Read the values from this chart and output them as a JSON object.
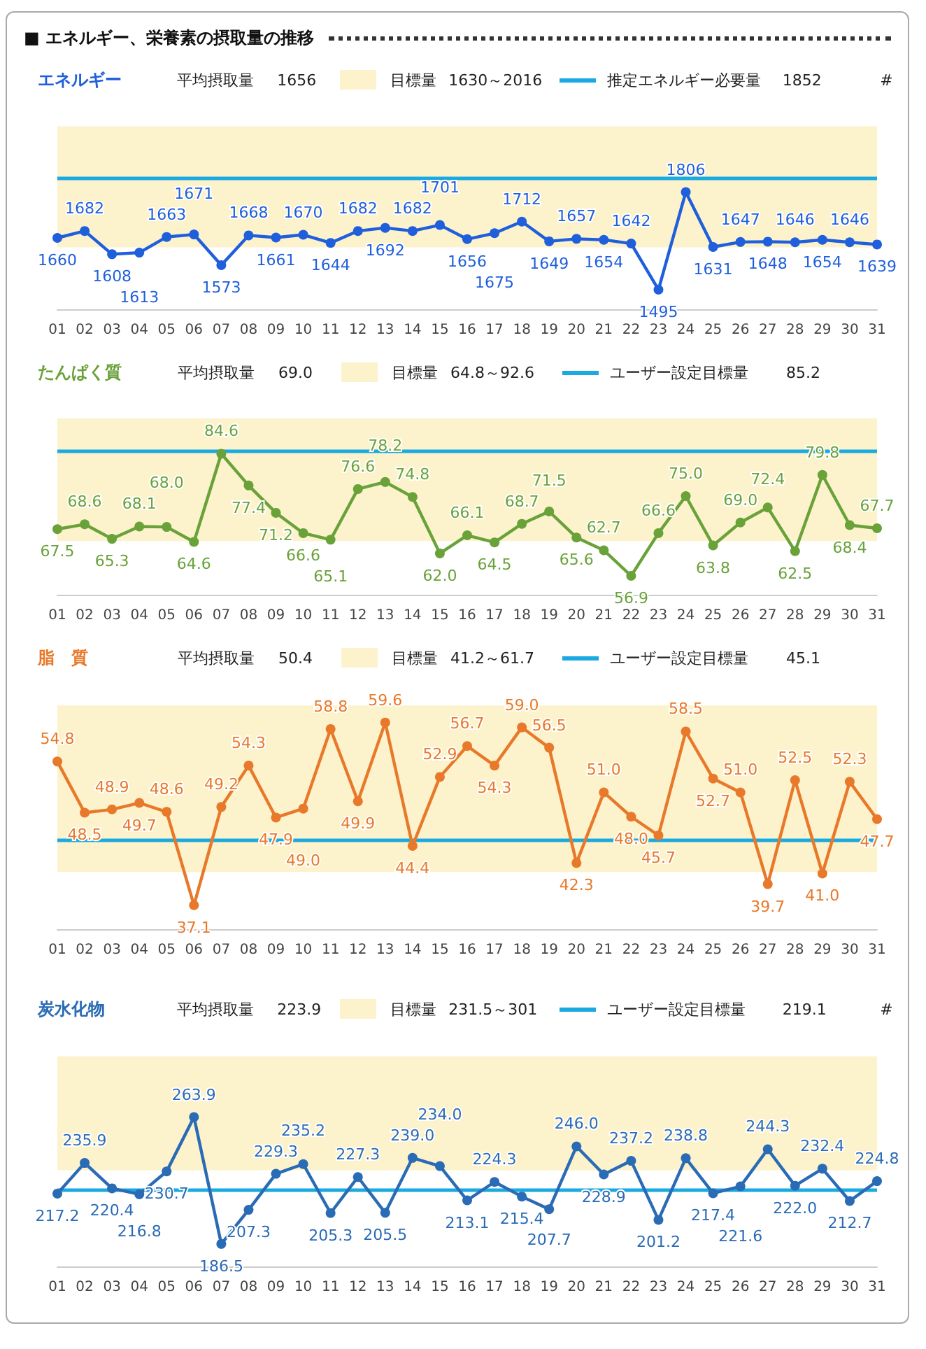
{
  "chart_data": [
    {
      "type": "other",
      "title": "■ エネルギー、栄養素の摂取量の推移"
    },
    {
      "type": "line",
      "title": "エネルギー",
      "legend": "top",
      "marker": "circle",
      "annotations": [
        "平均摂取量",
        "1656",
        "1630～2016",
        "1852",
        "#"
      ],
      "categories": [
        "01",
        "02",
        "03",
        "04",
        "05",
        "06",
        "07",
        "08",
        "09",
        "10",
        "11",
        "12",
        "13",
        "14",
        "15",
        "16",
        "17",
        "18",
        "19",
        "20",
        "21",
        "22",
        "23",
        "24",
        "25",
        "26",
        "27",
        "28",
        "29",
        "30",
        "31"
      ],
      "series": [
        {
          "color": "#1f5fdc",
          "values": [
            1660,
            1682,
            1608,
            1613,
            1663,
            1671,
            1573,
            1668,
            1661,
            1670,
            1644,
            1682,
            1692,
            1682,
            1701,
            1656,
            1675,
            1712,
            1649,
            1657,
            1654,
            1642,
            1495,
            1806,
            1631,
            1647,
            1648,
            1646,
            1654,
            1646,
            1639
          ],
          "value_labels": [
            "1660",
            "1682",
            "1608",
            "1613",
            "1663",
            "1671",
            "1573",
            "1668",
            "1661",
            "1670",
            "1644",
            "1682",
            "1692",
            "1682",
            "1701",
            "1656",
            "1675",
            "1712",
            "1649",
            "1657",
            "1654",
            "1642",
            "1495",
            "1806",
            "1631",
            "1647",
            "1648",
            "1646",
            "1654",
            "1646",
            "1639"
          ]
        }
      ],
      "bands": [
        {
          "axis": "y",
          "from": 1630,
          "to": 2016,
          "label": "目標量",
          "color": "#fcf2cc"
        }
      ],
      "ref_lines": [
        {
          "axis": "y",
          "value": 1852,
          "label": "推定エネルギー必要量",
          "color": "#1aa9e0"
        }
      ]
    },
    {
      "type": "line",
      "title": "たんぱく質",
      "legend": "top",
      "marker": "circle",
      "annotations": [
        "平均摂取量",
        "69.0",
        "64.8～92.6",
        "85.2"
      ],
      "categories": [
        "01",
        "02",
        "03",
        "04",
        "05",
        "06",
        "07",
        "08",
        "09",
        "10",
        "11",
        "12",
        "13",
        "14",
        "15",
        "16",
        "17",
        "18",
        "19",
        "20",
        "21",
        "22",
        "23",
        "24",
        "25",
        "26",
        "27",
        "28",
        "29",
        "30",
        "31"
      ],
      "series": [
        {
          "color": "#6aa23a",
          "values": [
            67.5,
            68.6,
            65.3,
            68.1,
            68.0,
            64.6,
            84.6,
            77.4,
            71.2,
            66.6,
            65.1,
            76.6,
            78.2,
            74.8,
            62.0,
            66.1,
            64.5,
            68.7,
            71.5,
            65.6,
            62.7,
            56.9,
            66.6,
            75.0,
            63.8,
            69.0,
            72.4,
            62.5,
            79.8,
            68.4,
            67.7
          ],
          "value_labels": [
            "67.5",
            "68.6",
            "65.3",
            "68.1",
            "68.0",
            "64.6",
            "84.6",
            "77.4",
            "71.2",
            "66.6",
            "65.1",
            "76.6",
            "78.2",
            "74.8",
            "62.0",
            "66.1",
            "64.5",
            "68.7",
            "71.5",
            "65.6",
            "62.7",
            "56.9",
            "66.6",
            "75.0",
            "63.8",
            "69.0",
            "72.4",
            "62.5",
            "79.8",
            "68.4",
            "67.7"
          ]
        }
      ],
      "bands": [
        {
          "axis": "y",
          "from": 64.8,
          "to": 92.6,
          "label": "目標量",
          "color": "#fcf2cc"
        }
      ],
      "ref_lines": [
        {
          "axis": "y",
          "value": 85.2,
          "label": "ユーザー設定目標量",
          "color": "#1aa9e0"
        }
      ]
    },
    {
      "type": "line",
      "title": "脂　質",
      "legend": "top",
      "marker": "circle",
      "annotations": [
        "平均摂取量",
        "50.4",
        "41.2～61.7",
        "45.1"
      ],
      "categories": [
        "01",
        "02",
        "03",
        "04",
        "05",
        "06",
        "07",
        "08",
        "09",
        "10",
        "11",
        "12",
        "13",
        "14",
        "15",
        "16",
        "17",
        "18",
        "19",
        "20",
        "21",
        "22",
        "23",
        "24",
        "25",
        "26",
        "27",
        "28",
        "29",
        "30",
        "31"
      ],
      "series": [
        {
          "color": "#e8792a",
          "values": [
            54.8,
            48.5,
            48.9,
            49.7,
            48.6,
            37.1,
            49.2,
            54.3,
            47.9,
            49.0,
            58.8,
            49.9,
            59.6,
            44.4,
            52.9,
            56.7,
            54.3,
            59.0,
            56.5,
            42.3,
            51.0,
            48.0,
            45.7,
            58.5,
            52.7,
            51.0,
            39.7,
            52.5,
            41.0,
            52.3,
            47.7
          ],
          "value_labels": [
            "54.8",
            "48.5",
            "48.9",
            "49.7",
            "48.6",
            "37.1",
            "49.2",
            "54.3",
            "47.9",
            "49.0",
            "58.8",
            "49.9",
            "59.6",
            "44.4",
            "52.9",
            "56.7",
            "54.3",
            "59.0",
            "56.5",
            "42.3",
            "51.0",
            "48.0",
            "45.7",
            "58.5",
            "52.7",
            "51.0",
            "39.7",
            "52.5",
            "41.0",
            "52.3",
            "47.7"
          ]
        }
      ],
      "bands": [
        {
          "axis": "y",
          "from": 41.2,
          "to": 61.7,
          "label": "目標量",
          "color": "#fcf2cc"
        }
      ],
      "ref_lines": [
        {
          "axis": "y",
          "value": 45.1,
          "label": "ユーザー設定目標量",
          "color": "#1aa9e0"
        }
      ]
    },
    {
      "type": "line",
      "title": "炭水化物",
      "legend": "top",
      "marker": "circle",
      "annotations": [
        "平均摂取量",
        "223.9",
        "231.5～301",
        "219.1",
        "#"
      ],
      "categories": [
        "01",
        "02",
        "03",
        "04",
        "05",
        "06",
        "07",
        "08",
        "09",
        "10",
        "11",
        "12",
        "13",
        "14",
        "15",
        "16",
        "17",
        "18",
        "19",
        "20",
        "21",
        "22",
        "23",
        "24",
        "25",
        "26",
        "27",
        "28",
        "29",
        "30",
        "31"
      ],
      "series": [
        {
          "color": "#2a6bb5",
          "values": [
            217.2,
            235.9,
            220.4,
            216.8,
            230.7,
            263.9,
            186.5,
            207.3,
            229.3,
            235.2,
            205.3,
            227.3,
            205.5,
            239.0,
            234.0,
            213.1,
            224.3,
            215.4,
            207.7,
            246.0,
            228.9,
            237.2,
            201.2,
            238.8,
            217.4,
            221.6,
            244.3,
            222.0,
            232.4,
            212.7,
            224.8
          ],
          "value_labels": [
            "217.2",
            "235.9",
            "220.4",
            "216.8",
            "230.7",
            "263.9",
            "186.5",
            "207.3",
            "229.3",
            "235.2",
            "205.3",
            "227.3",
            "205.5",
            "239.0",
            "234.0",
            "213.1",
            "224.3",
            "215.4",
            "207.7",
            "246.0",
            "228.9",
            "237.2",
            "201.2",
            "238.8",
            "217.4",
            "221.6",
            "244.3",
            "222.0",
            "232.4",
            "212.7",
            "224.8"
          ]
        }
      ],
      "bands": [
        {
          "axis": "y",
          "from": 231.5,
          "to": 301,
          "label": "目標量",
          "color": "#fcf2cc"
        }
      ],
      "ref_lines": [
        {
          "axis": "y",
          "value": 219.1,
          "label": "ユーザー設定目標量",
          "color": "#1aa9e0"
        }
      ]
    }
  ]
}
